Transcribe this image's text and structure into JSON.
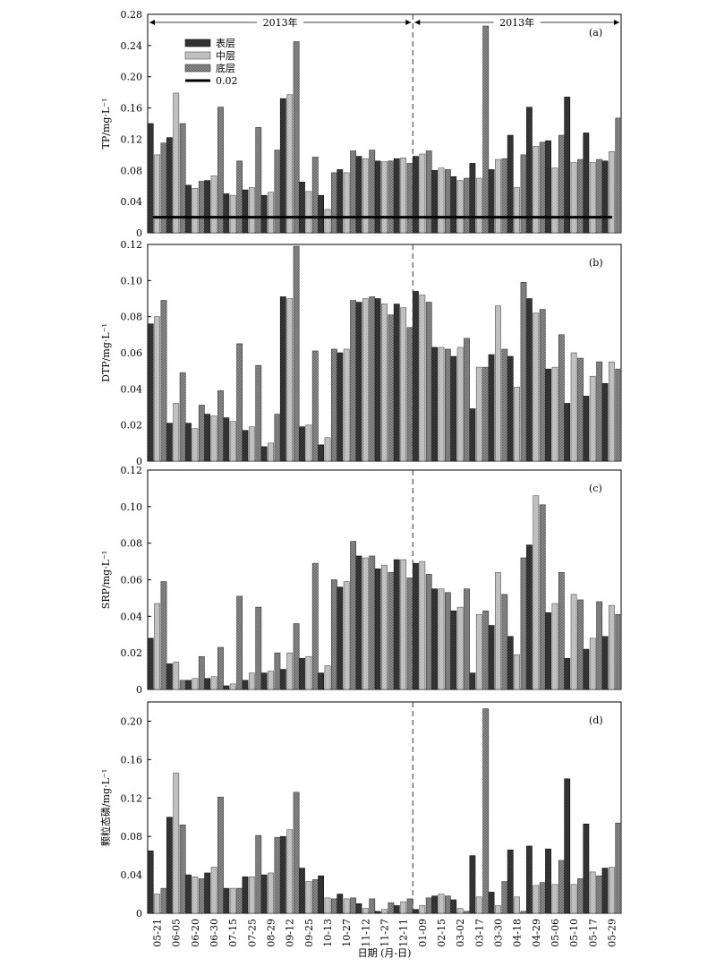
{
  "chart_data": [
    {
      "type": "bar",
      "panel_label": "(a)",
      "ylabel": "TP/mg·L⁻¹",
      "ylim": [
        0,
        0.28
      ],
      "yticks": [
        0,
        0.04,
        0.08,
        0.12,
        0.16,
        0.2,
        0.24,
        0.28
      ],
      "legend": {
        "placement": "top-left",
        "entries": [
          "表层",
          "中层",
          "底层",
          "0.02"
        ]
      },
      "reference_line": {
        "name": "0.02",
        "value": 0.02
      },
      "year_labels": [
        "2013年",
        "2013年"
      ],
      "series": [
        {
          "name": "表层",
          "values": [
            0.14,
            0.122,
            0.061,
            0.067,
            0.05,
            0.055,
            0.048,
            0.172,
            0.065,
            0.048,
            0.081,
            0.098,
            0.092,
            0.095,
            0.098,
            0.08,
            0.072,
            0.089,
            0.081,
            0.125,
            0.161,
            0.118,
            0.174,
            0.128,
            0.092
          ]
        },
        {
          "name": "中层",
          "values": [
            0.1,
            0.179,
            0.057,
            0.073,
            0.048,
            0.058,
            0.052,
            0.177,
            0.053,
            0.03,
            0.077,
            0.095,
            0.091,
            0.096,
            0.101,
            0.083,
            0.067,
            0.07,
            0.094,
            0.058,
            0.111,
            0.083,
            0.09,
            0.09,
            0.104
          ]
        },
        {
          "name": "底层",
          "values": [
            0.115,
            0.14,
            0.066,
            0.161,
            0.092,
            0.135,
            0.106,
            0.245,
            0.097,
            0.077,
            0.105,
            0.106,
            0.092,
            0.089,
            0.105,
            0.081,
            0.07,
            0.265,
            0.095,
            0.1,
            0.116,
            0.125,
            0.094,
            0.094,
            0.147
          ]
        }
      ]
    },
    {
      "type": "bar",
      "panel_label": "(b)",
      "ylabel": "DTP/mg·L⁻¹",
      "ylim": [
        0,
        0.12
      ],
      "yticks": [
        0,
        0.02,
        0.04,
        0.06,
        0.08,
        0.1,
        0.12
      ],
      "series": [
        {
          "name": "表层",
          "values": [
            0.076,
            0.021,
            0.021,
            0.026,
            0.024,
            0.017,
            0.008,
            0.091,
            0.019,
            0.009,
            0.06,
            0.088,
            0.09,
            0.087,
            0.094,
            0.063,
            0.058,
            0.029,
            0.059,
            0.058,
            0.09,
            0.051,
            0.032,
            0.036,
            0.043
          ]
        },
        {
          "name": "中层",
          "values": [
            0.08,
            0.032,
            0.018,
            0.025,
            0.022,
            0.019,
            0.01,
            0.09,
            0.02,
            0.013,
            0.062,
            0.09,
            0.087,
            0.085,
            0.092,
            0.063,
            0.063,
            0.052,
            0.086,
            0.041,
            0.082,
            0.052,
            0.06,
            0.047,
            0.055
          ]
        },
        {
          "name": "底层",
          "values": [
            0.089,
            0.049,
            0.031,
            0.039,
            0.065,
            0.053,
            0.026,
            0.119,
            0.061,
            0.062,
            0.089,
            0.091,
            0.081,
            0.074,
            0.088,
            0.062,
            0.068,
            0.052,
            0.062,
            0.099,
            0.084,
            0.07,
            0.057,
            0.055,
            0.051
          ]
        }
      ]
    },
    {
      "type": "bar",
      "panel_label": "(c)",
      "ylabel": "SRP/mg·L⁻¹",
      "ylim": [
        0,
        0.12
      ],
      "yticks": [
        0,
        0.02,
        0.04,
        0.06,
        0.08,
        0.1,
        0.12
      ],
      "series": [
        {
          "name": "表层",
          "values": [
            0.028,
            0.014,
            0.005,
            0.006,
            0.002,
            0.005,
            0.009,
            0.011,
            0.017,
            0.009,
            0.056,
            0.073,
            0.066,
            0.071,
            0.069,
            0.055,
            0.043,
            0.009,
            0.035,
            0.029,
            0.079,
            0.042,
            0.017,
            0.022,
            0.029
          ]
        },
        {
          "name": "中层",
          "values": [
            0.047,
            0.015,
            0.006,
            0.007,
            0.003,
            0.009,
            0.01,
            0.02,
            0.018,
            0.013,
            0.059,
            0.072,
            0.068,
            0.071,
            0.07,
            0.055,
            0.045,
            0.041,
            0.064,
            0.019,
            0.106,
            0.047,
            0.052,
            0.028,
            0.046
          ]
        },
        {
          "name": "底层",
          "values": [
            0.059,
            0.005,
            0.018,
            0.023,
            0.051,
            0.045,
            0.02,
            0.036,
            0.069,
            0.06,
            0.081,
            0.073,
            0.064,
            0.061,
            0.063,
            0.053,
            0.055,
            0.043,
            0.052,
            0.072,
            0.101,
            0.064,
            0.049,
            0.048,
            0.041
          ]
        }
      ]
    },
    {
      "type": "bar",
      "panel_label": "(d)",
      "ylabel": "颗粒态磷/mg·L⁻¹",
      "ylim": [
        0,
        0.22
      ],
      "yticks": [
        0,
        0.04,
        0.08,
        0.12,
        0.16,
        0.2
      ],
      "xlabel": "日期 (月-日)",
      "categories": [
        "05-21",
        "06-05",
        "06-20",
        "06-30",
        "07-15",
        "07-25",
        "08-29",
        "09-12",
        "09-25",
        "10-13",
        "10-27",
        "11-12",
        "11-27",
        "12-11",
        "01-09",
        "02-15",
        "03-02",
        "03-17",
        "03-30",
        "04-18",
        "04-29",
        "05-06",
        "05-10",
        "05-17",
        "05-29"
      ],
      "series": [
        {
          "name": "表层",
          "values": [
            0.065,
            0.1,
            0.04,
            0.042,
            0.026,
            0.038,
            0.04,
            0.08,
            0.047,
            0.039,
            0.02,
            0.01,
            0.002,
            0.008,
            0.004,
            0.018,
            0.014,
            0.06,
            0.022,
            0.066,
            0.07,
            0.067,
            0.14,
            0.093,
            0.047
          ]
        },
        {
          "name": "中层",
          "values": [
            0.02,
            0.146,
            0.038,
            0.048,
            0.026,
            0.038,
            0.042,
            0.087,
            0.033,
            0.016,
            0.015,
            0.005,
            0.004,
            0.012,
            0.008,
            0.02,
            0.005,
            0.017,
            0.008,
            0.017,
            0.029,
            0.03,
            0.03,
            0.043,
            0.048
          ]
        },
        {
          "name": "底层",
          "values": [
            0.026,
            0.092,
            0.036,
            0.121,
            0.026,
            0.081,
            0.079,
            0.126,
            0.035,
            0.015,
            0.016,
            0.015,
            0.011,
            0.015,
            0.016,
            0.018,
            0.002,
            0.213,
            0.033,
            0.002,
            0.032,
            0.055,
            0.036,
            0.039,
            0.094
          ]
        }
      ]
    }
  ],
  "colors": {
    "surface": "#2b2b2b",
    "middle": "#c4c4c4",
    "bottom": "#7e7e7e",
    "reference_line": "#000000"
  }
}
